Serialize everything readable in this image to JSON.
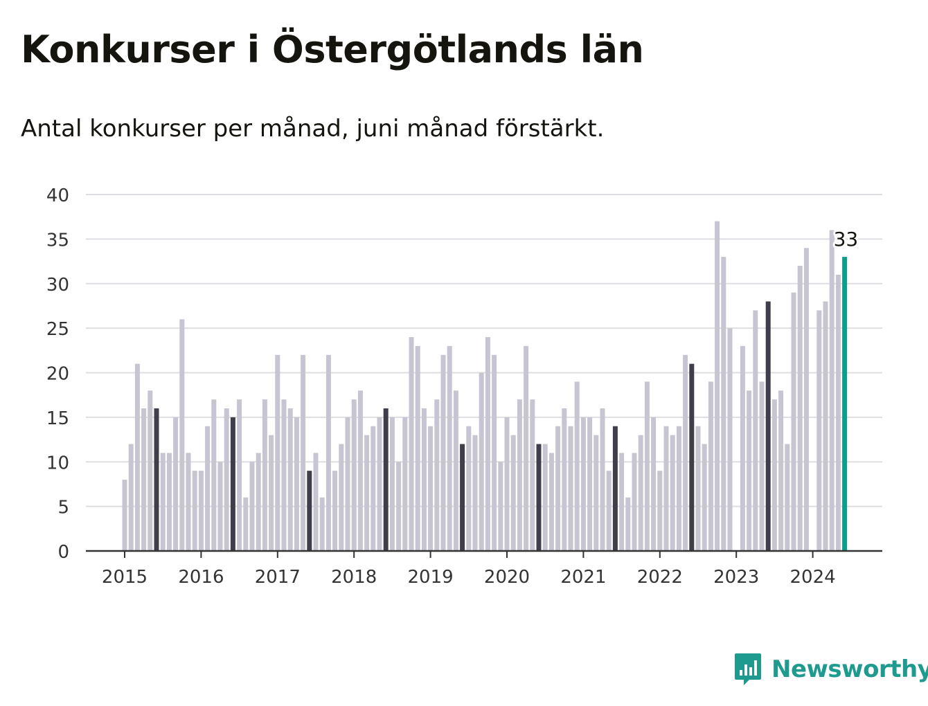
{
  "title": "Konkurser i Östergötlands län",
  "subtitle": "Antal konkurser per månad, juni månad förstärkt.",
  "brand": {
    "name": "Newsworthy",
    "icon": "bar-chart-speech-bubble-icon",
    "color": "#1f9a8e"
  },
  "colors": {
    "bar": "#c6c5d1",
    "june": "#3f3e4a",
    "latest": "#0d9d8d",
    "grid": "#dddde2",
    "axis": "#333333",
    "text": "#333333"
  },
  "chart_data": {
    "type": "bar",
    "title": "Konkurser i Östergötlands län",
    "ylim": [
      0,
      40
    ],
    "yticks": [
      "0",
      "5",
      "10",
      "15",
      "20",
      "25",
      "30",
      "35",
      "40"
    ],
    "xticks": [
      "2015",
      "2016",
      "2017",
      "2018",
      "2019",
      "2020",
      "2021",
      "2022",
      "2023",
      "2024"
    ],
    "start": "2015-01",
    "highlighted_month": "juni",
    "values": [
      8,
      12,
      21,
      16,
      18,
      16,
      11,
      11,
      15,
      26,
      11,
      9,
      9,
      14,
      17,
      10,
      16,
      15,
      17,
      6,
      10,
      11,
      17,
      13,
      22,
      17,
      16,
      15,
      22,
      9,
      11,
      6,
      22,
      9,
      12,
      15,
      17,
      18,
      13,
      14,
      15,
      16,
      15,
      10,
      15,
      24,
      23,
      16,
      14,
      17,
      22,
      23,
      18,
      12,
      14,
      13,
      20,
      24,
      22,
      10,
      15,
      13,
      17,
      23,
      17,
      12,
      12,
      11,
      14,
      16,
      14,
      19,
      15,
      15,
      13,
      16,
      9,
      14,
      11,
      6,
      11,
      13,
      19,
      15,
      9,
      14,
      13,
      14,
      22,
      21,
      14,
      12,
      19,
      37,
      33,
      25,
      null,
      23,
      18,
      27,
      19,
      28,
      17,
      18,
      12,
      29,
      32,
      34,
      null,
      27,
      28,
      36,
      31,
      33
    ],
    "annotation": {
      "label": "33",
      "month": "2024-06"
    }
  }
}
